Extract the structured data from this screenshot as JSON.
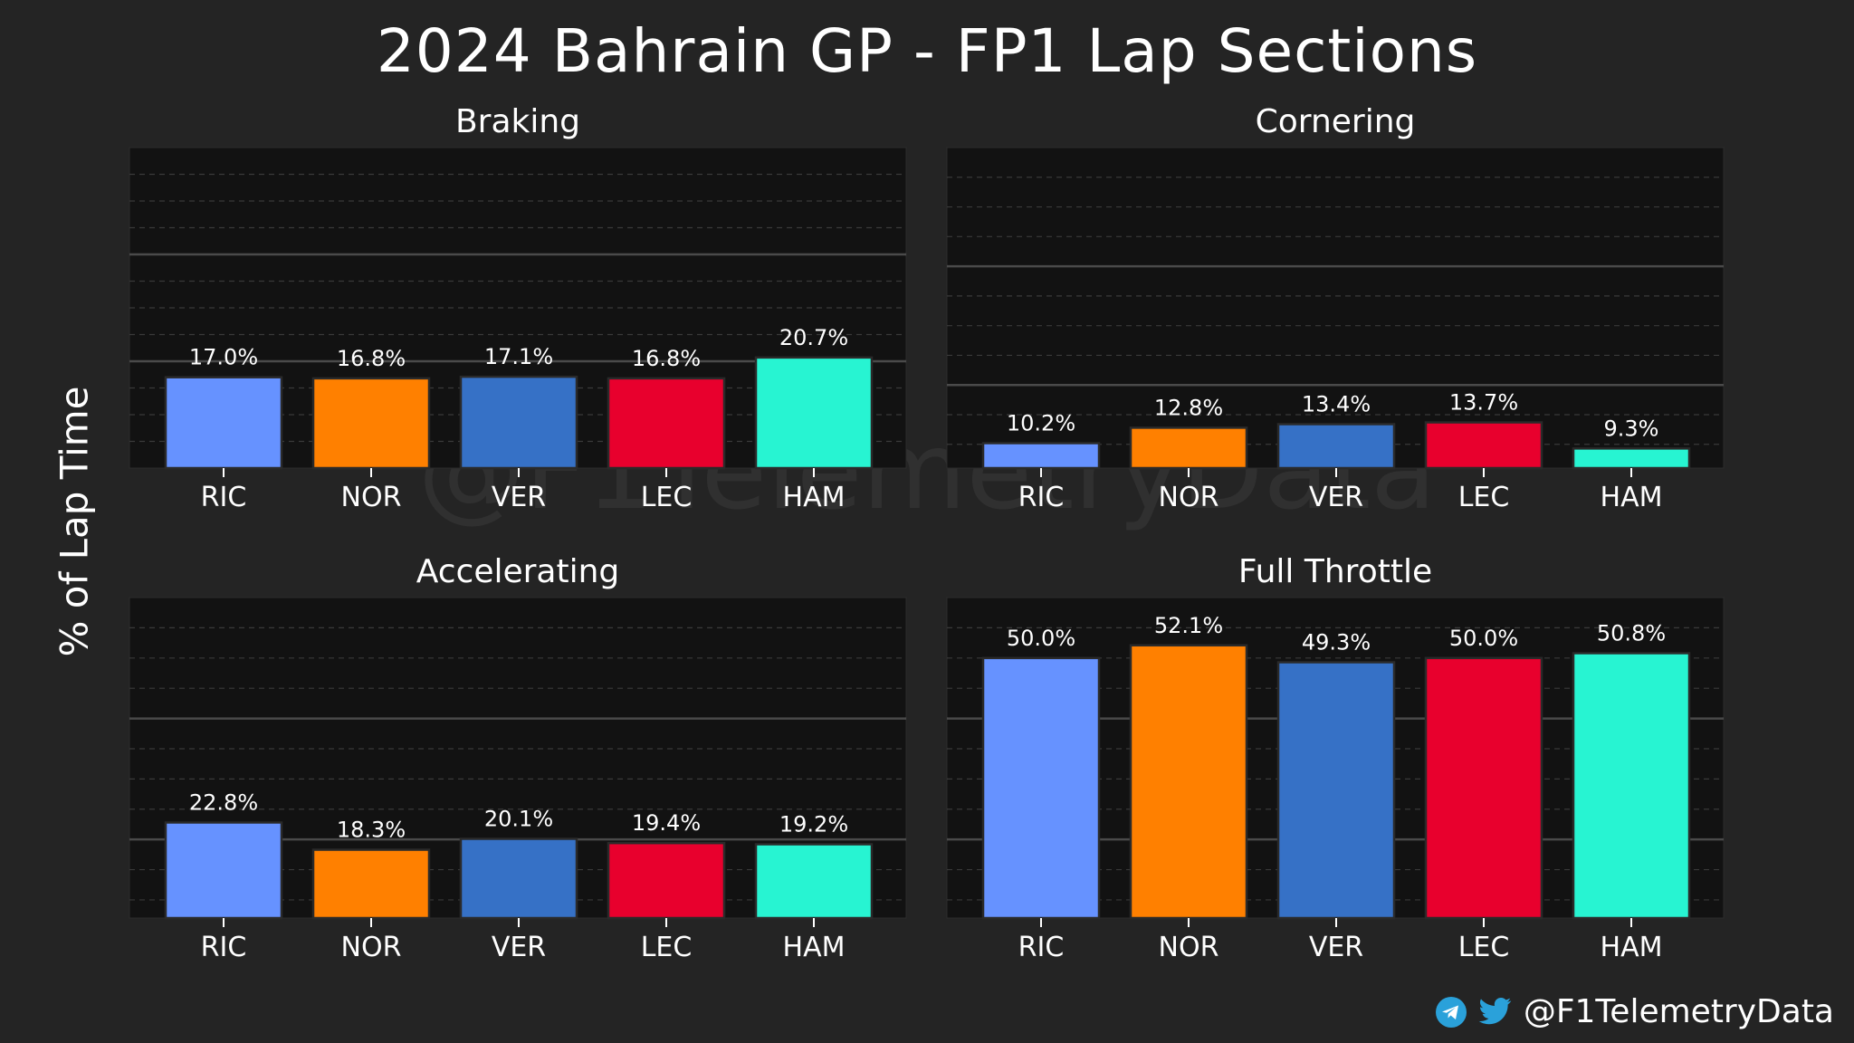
{
  "title": "2024 Bahrain GP - FP1 Lap Sections",
  "ylabel": "% of Lap Time",
  "watermark": "@F1TelemetryData",
  "footer": {
    "handle": "@F1TelemetryData",
    "icons": [
      "telegram-icon",
      "twitter-icon"
    ]
  },
  "colors": {
    "RIC": "#6692ff",
    "NOR": "#ff8000",
    "VER": "#3671c6",
    "LEC": "#e8002d",
    "HAM": "#27f4d2",
    "panel_bg": "#121212",
    "page_bg": "#242424"
  },
  "chart_data": [
    {
      "type": "bar",
      "title": "Braking",
      "categories": [
        "RIC",
        "NOR",
        "VER",
        "LEC",
        "HAM"
      ],
      "values": [
        17.0,
        16.8,
        17.1,
        16.8,
        20.7
      ],
      "value_labels": [
        "17.0%",
        "16.8%",
        "17.1%",
        "16.8%",
        "20.7%"
      ],
      "ylim": [
        0,
        60
      ],
      "grid": true
    },
    {
      "type": "bar",
      "title": "Cornering",
      "categories": [
        "RIC",
        "NOR",
        "VER",
        "LEC",
        "HAM"
      ],
      "values": [
        10.2,
        12.8,
        13.4,
        13.7,
        9.3
      ],
      "value_labels": [
        "10.2%",
        "12.8%",
        "13.4%",
        "13.7%",
        "9.3%"
      ],
      "ylim": [
        6,
        60
      ],
      "grid": true
    },
    {
      "type": "bar",
      "title": "Accelerating",
      "categories": [
        "RIC",
        "NOR",
        "VER",
        "LEC",
        "HAM"
      ],
      "values": [
        22.8,
        18.3,
        20.1,
        19.4,
        19.2
      ],
      "value_labels": [
        "22.8%",
        "18.3%",
        "20.1%",
        "19.4%",
        "19.2%"
      ],
      "ylim": [
        7,
        60
      ],
      "grid": true
    },
    {
      "type": "bar",
      "title": "Full Throttle",
      "categories": [
        "RIC",
        "NOR",
        "VER",
        "LEC",
        "HAM"
      ],
      "values": [
        50.0,
        52.1,
        49.3,
        50.0,
        50.8
      ],
      "value_labels": [
        "50.0%",
        "52.1%",
        "49.3%",
        "50.0%",
        "50.8%"
      ],
      "ylim": [
        7,
        60
      ],
      "grid": true
    }
  ]
}
